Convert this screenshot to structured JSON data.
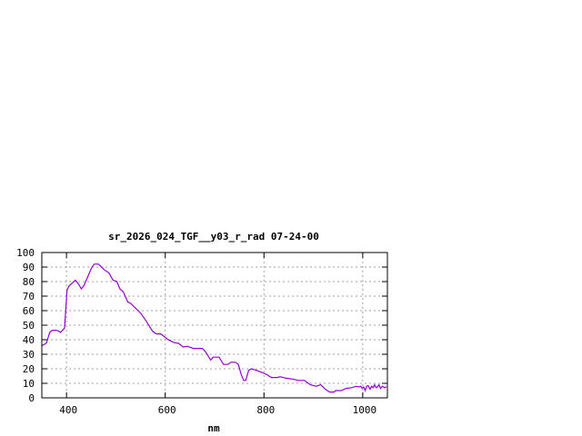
{
  "chart_data": {
    "type": "line",
    "title": "sr_2026_024_TGF__y03_r_rad 07-24-00",
    "xlabel": "nm",
    "ylabel": "",
    "xlim": [
      350,
      1050
    ],
    "ylim": [
      0,
      100
    ],
    "xticks": [
      400,
      600,
      800,
      1000
    ],
    "yticks": [
      0,
      10,
      20,
      30,
      40,
      50,
      60,
      70,
      80,
      90,
      100
    ],
    "grid": true,
    "line_color": "#9400d3",
    "series": [
      {
        "x": [
          350,
          359,
          366,
          371,
          378,
          384,
          388,
          396,
          401,
          405,
          418,
          425,
          430,
          435,
          444,
          450,
          456,
          465,
          477,
          486,
          494,
          502,
          508,
          515,
          524,
          530,
          551,
          563,
          574,
          582,
          591,
          606,
          618,
          627,
          636,
          645,
          657,
          675,
          681,
          692,
          697,
          709,
          718,
          727,
          733,
          742,
          748,
          754,
          759,
          763,
          769,
          775,
          784,
          796,
          806,
          815,
          827,
          833,
          845,
          857,
          870,
          882,
          894,
          906,
          915,
          924,
          933,
          942,
          945,
          957,
          966,
          978,
          987,
          993,
          996,
          999,
          1002,
          1005,
          1008,
          1011,
          1015,
          1018,
          1021,
          1024,
          1027,
          1030,
          1033,
          1036,
          1040,
          1044,
          1048
        ],
        "y": [
          36,
          37.5,
          45,
          46.5,
          46.5,
          46,
          45,
          48,
          74,
          77,
          81,
          78,
          75,
          77,
          84,
          89,
          92,
          92,
          88,
          86,
          81,
          80,
          75,
          73,
          66,
          65,
          58,
          52,
          46,
          44,
          44,
          40,
          38,
          37.5,
          35,
          35.5,
          34,
          34,
          32,
          26,
          28,
          28,
          23,
          23,
          24.5,
          24.5,
          23,
          16,
          12,
          12,
          19,
          20,
          19,
          17.5,
          16,
          14,
          14,
          14.5,
          13.5,
          13,
          12,
          12,
          9,
          8,
          9,
          6,
          4,
          4,
          5,
          5,
          6.5,
          7,
          8,
          7.5,
          8,
          6.5,
          7.5,
          5,
          8,
          8.5,
          6,
          8,
          7,
          9,
          7,
          7.5,
          9,
          6.5,
          8,
          7,
          7.5
        ]
      }
    ]
  }
}
